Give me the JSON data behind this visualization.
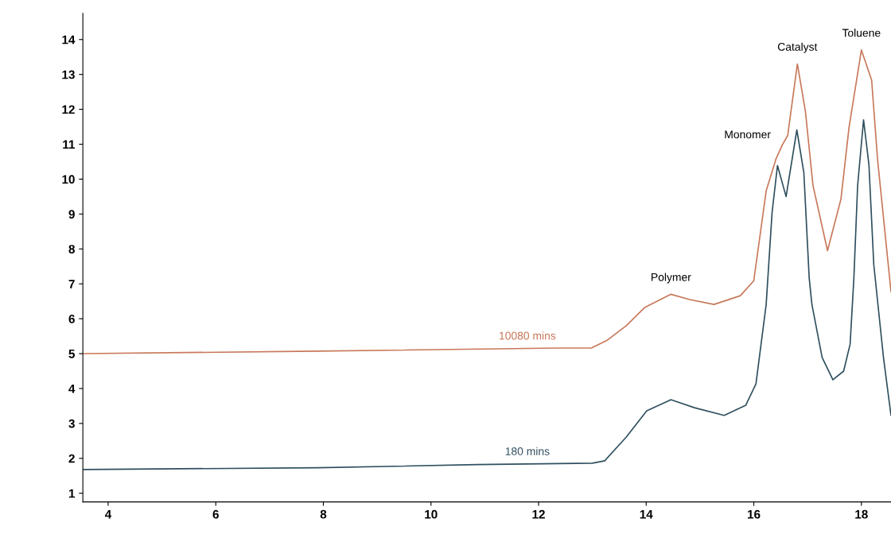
{
  "chart_data": {
    "type": "line",
    "xlim": [
      3.53,
      18.55
    ],
    "ylim": [
      0.75,
      14.75
    ],
    "xticks": [
      4,
      6,
      8,
      10,
      12,
      14,
      16,
      18
    ],
    "yticks": [
      1,
      2,
      3,
      4,
      5,
      6,
      7,
      8,
      9,
      10,
      11,
      12,
      13,
      14
    ],
    "grid": false,
    "legend": false,
    "marker": "none",
    "line_style": "solid",
    "series": [
      {
        "name": "10080 mins",
        "color": "#c8785a",
        "x": [
          3.53,
          7.9,
          12.34,
          12.98,
          13.28,
          13.63,
          13.97,
          14.46,
          14.81,
          15.26,
          15.75,
          16.0,
          16.23,
          16.41,
          16.53,
          16.63,
          16.81,
          16.96,
          17.1,
          17.37,
          17.62,
          17.77,
          18.0,
          18.19,
          18.3,
          18.55
        ],
        "values": [
          5.0,
          5.07,
          5.16,
          5.16,
          5.39,
          5.8,
          6.32,
          6.7,
          6.55,
          6.41,
          6.66,
          7.09,
          9.66,
          10.57,
          10.98,
          11.25,
          13.3,
          11.93,
          9.82,
          7.95,
          9.43,
          11.48,
          13.7,
          12.84,
          10.57,
          6.77
        ]
      },
      {
        "name": "180 mins",
        "color": "#2f4f5f",
        "x": [
          3.53,
          7.9,
          10.86,
          13.0,
          13.23,
          13.63,
          14.01,
          14.46,
          14.9,
          15.45,
          15.85,
          16.04,
          16.23,
          16.34,
          16.44,
          16.6,
          16.8,
          16.93,
          17.03,
          17.08,
          17.27,
          17.47,
          17.67,
          17.79,
          17.86,
          17.93,
          18.04,
          18.14,
          18.23,
          18.41,
          18.55
        ],
        "values": [
          1.68,
          1.73,
          1.82,
          1.86,
          1.93,
          2.61,
          3.36,
          3.68,
          3.45,
          3.23,
          3.52,
          4.13,
          6.41,
          9.05,
          10.39,
          9.5,
          11.41,
          10.19,
          7.16,
          6.41,
          4.89,
          4.25,
          4.5,
          5.27,
          7.16,
          9.82,
          11.7,
          10.41,
          7.55,
          4.89,
          3.23
        ]
      }
    ],
    "annotations": [
      {
        "text": "Polymer",
        "x": 14.46,
        "y": 6.7
      },
      {
        "text": "Monomer",
        "x": 16.44,
        "y": 10.98
      },
      {
        "text": "Catalyst",
        "x": 16.81,
        "y": 13.3
      },
      {
        "text": "Toluene",
        "x": 18.0,
        "y": 13.7
      }
    ]
  }
}
